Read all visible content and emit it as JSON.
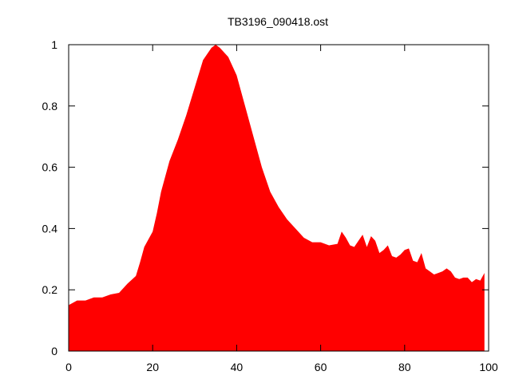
{
  "chart_data": {
    "type": "area",
    "title": "TB3196_090418.ost",
    "xlabel": "",
    "ylabel": "",
    "xlim": [
      0,
      100
    ],
    "ylim": [
      0,
      1
    ],
    "xticks": [
      0,
      20,
      40,
      60,
      80,
      100
    ],
    "yticks": [
      0,
      0.2,
      0.4,
      0.6,
      0.8,
      1
    ],
    "ytick_labels": [
      "0",
      "0.2",
      "0.4",
      "0.6",
      "0.8",
      "1"
    ],
    "grid": false,
    "fill_color": "#ff0000",
    "series": [
      {
        "x": [
          0,
          2,
          4,
          6,
          8,
          10,
          12,
          14,
          16,
          17,
          18,
          20,
          21,
          22,
          24,
          26,
          28,
          30,
          32,
          34,
          35,
          36,
          38,
          40,
          42,
          44,
          46,
          48,
          50,
          52,
          54,
          56,
          58,
          60,
          62,
          64,
          65,
          66,
          67,
          68,
          69,
          70,
          71,
          72,
          73,
          74,
          75,
          76,
          77,
          78,
          79,
          80,
          81,
          82,
          83,
          84,
          85,
          86,
          87,
          88,
          89,
          90,
          91,
          92,
          93,
          94,
          95,
          96,
          97,
          98,
          99
        ],
        "y": [
          0.15,
          0.165,
          0.165,
          0.175,
          0.175,
          0.185,
          0.19,
          0.22,
          0.245,
          0.29,
          0.34,
          0.39,
          0.45,
          0.52,
          0.62,
          0.69,
          0.77,
          0.86,
          0.95,
          0.99,
          1.0,
          0.99,
          0.96,
          0.9,
          0.8,
          0.7,
          0.6,
          0.52,
          0.47,
          0.43,
          0.4,
          0.37,
          0.355,
          0.355,
          0.345,
          0.35,
          0.39,
          0.37,
          0.345,
          0.34,
          0.36,
          0.38,
          0.34,
          0.375,
          0.36,
          0.32,
          0.33,
          0.345,
          0.31,
          0.305,
          0.315,
          0.33,
          0.335,
          0.295,
          0.29,
          0.32,
          0.27,
          0.26,
          0.25,
          0.255,
          0.26,
          0.27,
          0.26,
          0.24,
          0.235,
          0.24,
          0.24,
          0.225,
          0.235,
          0.23,
          0.255
        ]
      }
    ]
  }
}
